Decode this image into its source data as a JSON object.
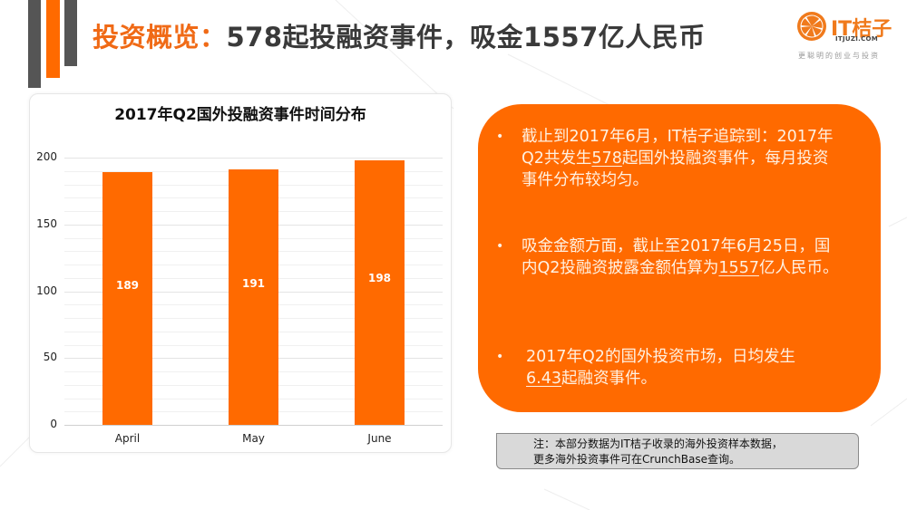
{
  "header": {
    "title_accent": "投资概览：",
    "title_rest": "578起投融资事件，吸金1557亿人民币"
  },
  "logo": {
    "name": "IT桔子",
    "domain": "ITJUZI.COM",
    "slogan": "更聪明的创业与投资",
    "icon": "orange-slice-icon"
  },
  "colors": {
    "accent": "#ff6a00",
    "title_dark": "#3a3a3a",
    "deco_gray": "#555555",
    "note_bg": "#d9d9d9"
  },
  "chart_data": {
    "type": "bar",
    "title": "2017年Q2国外投融资事件时间分布",
    "categories": [
      "April",
      "May",
      "June"
    ],
    "values": [
      189,
      191,
      198
    ],
    "data_labels": [
      "189",
      "191",
      "198"
    ],
    "xlabel": "",
    "ylabel": "",
    "ylim": [
      0,
      200
    ],
    "yticks": [
      "0",
      "50",
      "100",
      "150",
      "200"
    ],
    "grid": true,
    "legend": "none",
    "bar_color": "#ff6a00"
  },
  "info_box": {
    "items": [
      {
        "bullet": "•",
        "before": "截止到2017年6月，IT桔子追踪到：2017年Q2共发生",
        "highlight": "578",
        "after": "起国外投融资事件，每月投资事件分布较均匀。"
      },
      {
        "bullet": "•",
        "before": "吸金金额方面，截止至2017年6月25日，国内Q2投融资披露金额估算为",
        "highlight": "1557",
        "after": "亿人民币。"
      },
      {
        "bullet": "•",
        "before": "2017年Q2的国外投资市场，日均发生",
        "highlight": "6.43",
        "after": "起融资事件。"
      }
    ]
  },
  "note": {
    "line1": "注：本部分数据为IT桔子收录的海外投资样本数据，",
    "line2": "更多海外投资事件可在CrunchBase查询。"
  }
}
